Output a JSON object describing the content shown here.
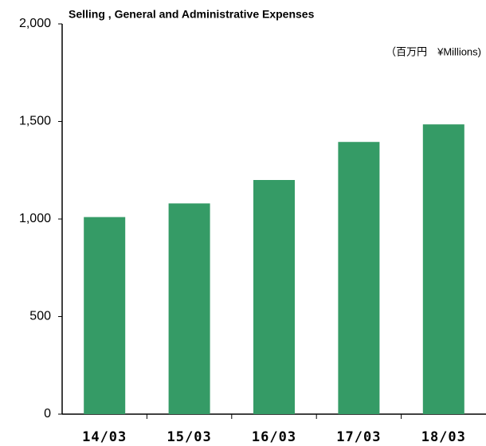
{
  "chart_data": {
    "type": "bar",
    "title": "Selling , General and Administrative Expenses",
    "unit_label": "（百万円　¥Millions)",
    "categories": [
      "14/03",
      "15/03",
      "16/03",
      "17/03",
      "18/03"
    ],
    "values": [
      1010,
      1080,
      1200,
      1395,
      1485
    ],
    "color": "#359b66",
    "ylim": [
      0,
      2000
    ],
    "yticks": [
      {
        "value": 0,
        "label": "0"
      },
      {
        "value": 500,
        "label": "500"
      },
      {
        "value": 1000,
        "label": "1,000"
      },
      {
        "value": 1500,
        "label": "1,500"
      },
      {
        "value": 2000,
        "label": "2,000"
      }
    ],
    "grid": false
  }
}
